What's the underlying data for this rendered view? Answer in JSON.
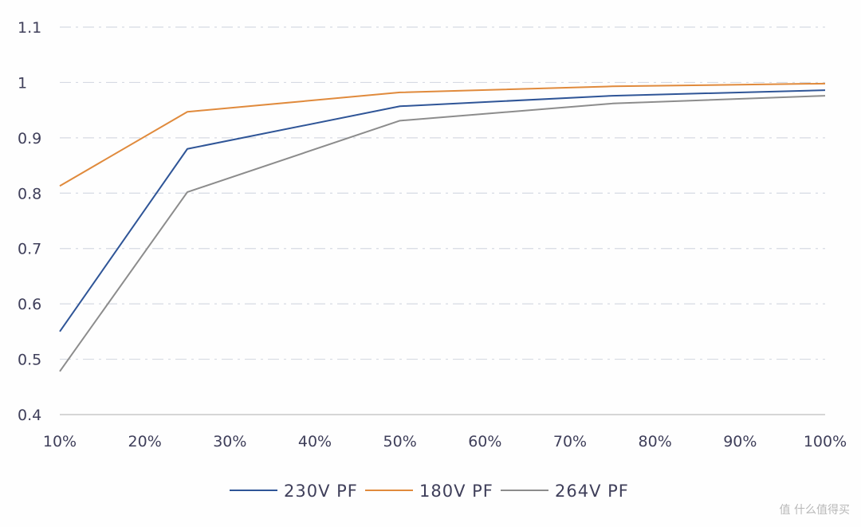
{
  "chart_data": {
    "type": "line",
    "title": "",
    "xlabel": "",
    "ylabel": "",
    "x": [
      10,
      25,
      50,
      75,
      100
    ],
    "x_ticks": [
      "10%",
      "20%",
      "30%",
      "40%",
      "50%",
      "60%",
      "70%",
      "80%",
      "90%",
      "100%"
    ],
    "x_range": [
      10,
      100
    ],
    "y_ticks": [
      "0.4",
      "0.5",
      "0.6",
      "0.7",
      "0.8",
      "0.9",
      "1",
      "1.1"
    ],
    "ylim": [
      0.4,
      1.1
    ],
    "grid": "horizontal dashed",
    "legend_position": "bottom",
    "series": [
      {
        "name": "230V PF",
        "color": "#2f5597",
        "values": [
          0.55,
          0.88,
          0.957,
          0.976,
          0.986
        ]
      },
      {
        "name": "180V PF",
        "color": "#e08a3c",
        "values": [
          0.813,
          0.947,
          0.982,
          0.993,
          0.998
        ]
      },
      {
        "name": "264V PF",
        "color": "#8c8c8c",
        "values": [
          0.478,
          0.802,
          0.931,
          0.962,
          0.976
        ]
      }
    ]
  },
  "watermark": "什么值得买"
}
